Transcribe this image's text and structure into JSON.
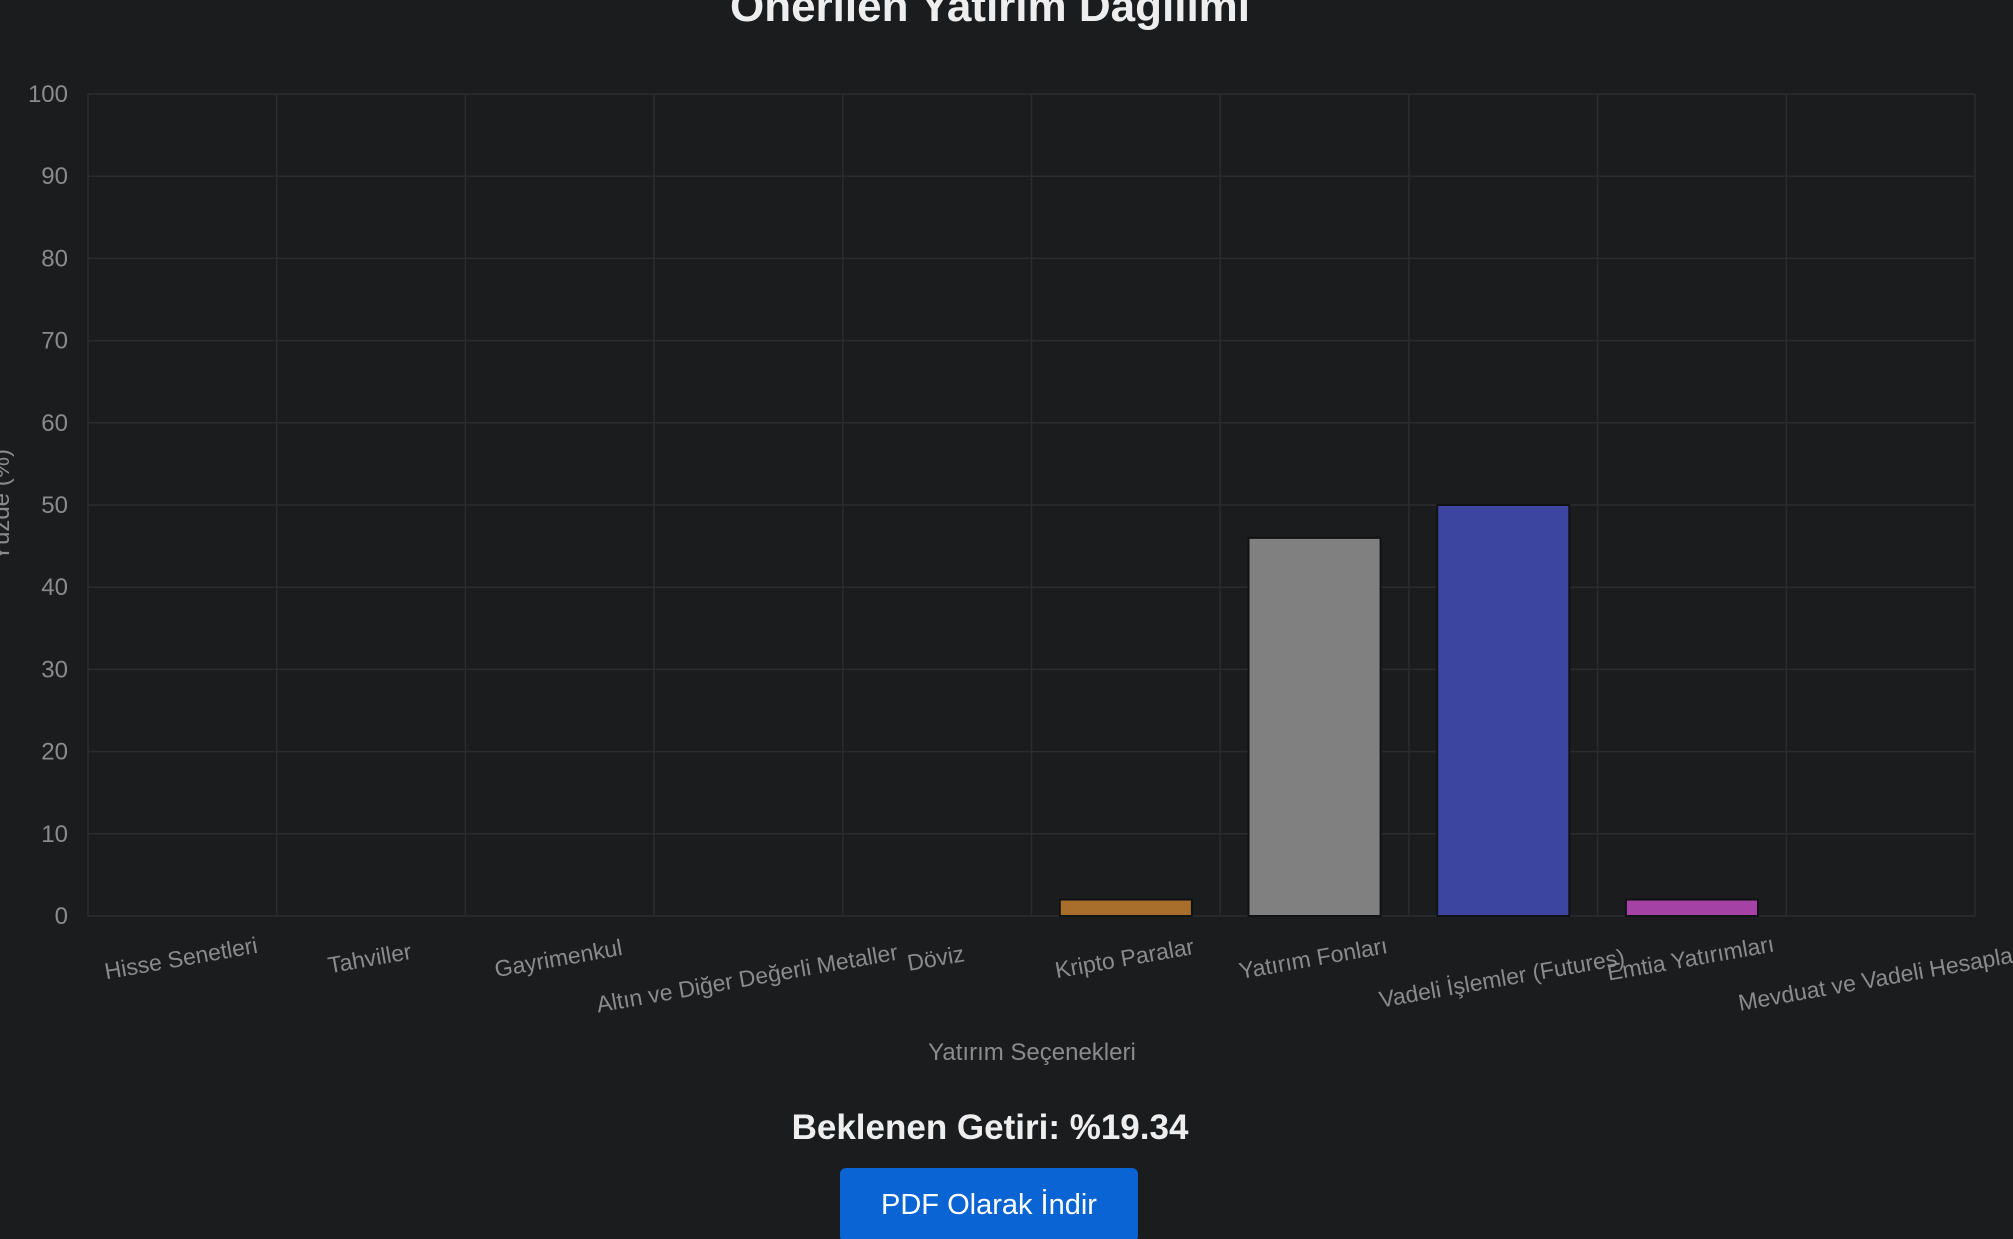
{
  "page": {
    "expected_return_label": "Beklenen Getiri: %19.34",
    "pdf_button_label": "PDF Olarak İndir"
  },
  "chart_data": {
    "type": "bar",
    "title": "Önerilen Yatırım Dağılımı",
    "xlabel": "Yatırım Seçenekleri",
    "ylabel": "Yüzde (%)",
    "ylim": [
      0,
      100
    ],
    "yticks": [
      0,
      10,
      20,
      30,
      40,
      50,
      60,
      70,
      80,
      90,
      100
    ],
    "grid": true,
    "legend": "none",
    "categories": [
      "Hisse Senetleri",
      "Tahviller",
      "Gayrimenkul",
      "Altın ve Diğer Değerli Metaller",
      "Döviz",
      "Kripto Paralar",
      "Yatırım Fonları",
      "Vadeli İşlemler (Futures)",
      "Emtia Yatırımları",
      "Mevduat ve Vadeli Hesaplar"
    ],
    "values": [
      0,
      0,
      0,
      0,
      0,
      2,
      46,
      50,
      2,
      0
    ],
    "colors": [
      "#c33a3a",
      "#3a7bd5",
      "#3fa34d",
      "#d4af37",
      "#2aa198",
      "#a86f2c",
      "#7f807f",
      "#3c46a0",
      "#a442a6",
      "#4a4a4a"
    ]
  }
}
